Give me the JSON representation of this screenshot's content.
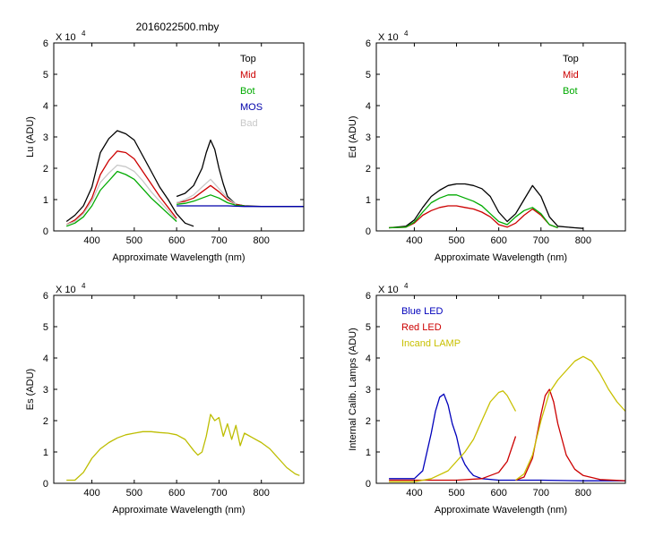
{
  "figure_title": "2016022500.mby",
  "colors": {
    "top": "#000000",
    "mid": "#cc0000",
    "bot": "#00aa00",
    "mos": "#0000aa",
    "bad": "#c8c8c8",
    "es": "#bdbd00",
    "blue_led": "#0000bb",
    "red_led": "#cc0000",
    "incand": "#c8c000"
  },
  "chart_data": [
    {
      "id": "lu",
      "type": "line",
      "title": "",
      "xlabel": "Approximate Wavelength (nm)",
      "ylabel": "Lu (ADU)",
      "exponent_label": "X 10",
      "exponent": "4",
      "xlim": [
        310,
        900
      ],
      "ylim": [
        0,
        6
      ],
      "xticks": [
        400,
        500,
        600,
        700,
        800
      ],
      "yticks": [
        0,
        1,
        2,
        3,
        4,
        5,
        6
      ],
      "legend": [
        {
          "label": "Top",
          "color": "#000000"
        },
        {
          "label": "Mid",
          "color": "#cc0000"
        },
        {
          "label": "Bot",
          "color": "#00aa00"
        },
        {
          "label": "MOS",
          "color": "#0000aa"
        },
        {
          "label": "Bad",
          "color": "#c8c8c8"
        }
      ],
      "legend_position": "top-right",
      "series": [
        {
          "name": "Top",
          "color": "#000000",
          "segments": [
            {
              "x": [
                340,
                360,
                380,
                400,
                420,
                440,
                460,
                480,
                500,
                520,
                540,
                560,
                580,
                600,
                620,
                640
              ],
              "y": [
                0.3,
                0.5,
                0.8,
                1.4,
                2.5,
                2.95,
                3.2,
                3.1,
                2.9,
                2.4,
                1.9,
                1.4,
                1.0,
                0.55,
                0.25,
                0.15
              ]
            },
            {
              "x": [
                600,
                620,
                640,
                660,
                670,
                680,
                690,
                700,
                710,
                720,
                740,
                760,
                800,
                850,
                900
              ],
              "y": [
                1.1,
                1.2,
                1.45,
                2.0,
                2.5,
                2.9,
                2.6,
                2.0,
                1.5,
                1.1,
                0.85,
                0.8,
                0.78,
                0.78,
                0.78
              ]
            }
          ]
        },
        {
          "name": "Mid",
          "color": "#cc0000",
          "segments": [
            {
              "x": [
                340,
                360,
                380,
                400,
                420,
                440,
                460,
                480,
                500,
                520,
                540,
                560,
                580,
                600
              ],
              "y": [
                0.2,
                0.35,
                0.6,
                1.05,
                1.8,
                2.25,
                2.55,
                2.5,
                2.3,
                1.9,
                1.5,
                1.1,
                0.75,
                0.4
              ]
            },
            {
              "x": [
                600,
                620,
                640,
                660,
                680,
                700,
                720,
                740,
                760
              ],
              "y": [
                0.9,
                0.95,
                1.05,
                1.25,
                1.45,
                1.25,
                1.0,
                0.85,
                0.8
              ]
            }
          ]
        },
        {
          "name": "Bot",
          "color": "#00aa00",
          "segments": [
            {
              "x": [
                340,
                360,
                380,
                400,
                420,
                440,
                460,
                480,
                500,
                520,
                540,
                560,
                580,
                600
              ],
              "y": [
                0.15,
                0.25,
                0.45,
                0.8,
                1.3,
                1.6,
                1.9,
                1.8,
                1.65,
                1.35,
                1.05,
                0.8,
                0.55,
                0.3
              ]
            },
            {
              "x": [
                600,
                620,
                640,
                660,
                680,
                700,
                720,
                740,
                760
              ],
              "y": [
                0.85,
                0.88,
                0.95,
                1.05,
                1.15,
                1.05,
                0.9,
                0.82,
                0.8
              ]
            }
          ]
        },
        {
          "name": "MOS",
          "color": "#0000aa",
          "segments": [
            {
              "x": [
                600,
                640,
                680,
                720,
                760,
                800,
                850,
                900
              ],
              "y": [
                0.8,
                0.8,
                0.8,
                0.8,
                0.78,
                0.78,
                0.78,
                0.78
              ]
            }
          ]
        },
        {
          "name": "Bad",
          "color": "#c8c8c8",
          "segments": [
            {
              "x": [
                340,
                360,
                380,
                400,
                420,
                440,
                460,
                480,
                500,
                520,
                540,
                560,
                580,
                600
              ],
              "y": [
                0.2,
                0.3,
                0.55,
                0.95,
                1.55,
                1.85,
                2.1,
                2.05,
                1.9,
                1.6,
                1.25,
                0.95,
                0.65,
                0.35
              ]
            },
            {
              "x": [
                600,
                620,
                640,
                660,
                680,
                700,
                720,
                740
              ],
              "y": [
                0.9,
                1.0,
                1.15,
                1.4,
                1.65,
                1.35,
                1.05,
                0.85
              ]
            }
          ]
        }
      ]
    },
    {
      "id": "ed",
      "type": "line",
      "xlabel": "Approximate Wavelength (nm)",
      "ylabel": "Ed  (ADU)",
      "exponent_label": "X 10",
      "exponent": "4",
      "xlim": [
        310,
        900
      ],
      "ylim": [
        0,
        6
      ],
      "xticks": [
        400,
        500,
        600,
        700,
        800
      ],
      "yticks": [
        0,
        1,
        2,
        3,
        4,
        5,
        6
      ],
      "legend": [
        {
          "label": "Top",
          "color": "#000000"
        },
        {
          "label": "Mid",
          "color": "#cc0000"
        },
        {
          "label": "Bot",
          "color": "#00aa00"
        }
      ],
      "legend_position": "top-right",
      "series": [
        {
          "name": "Top",
          "color": "#000000",
          "segments": [
            {
              "x": [
                340,
                380,
                400,
                420,
                440,
                460,
                480,
                500,
                520,
                540,
                560,
                580,
                600,
                620,
                640,
                660,
                680,
                700,
                720,
                740,
                780,
                800
              ],
              "y": [
                0.1,
                0.15,
                0.35,
                0.75,
                1.1,
                1.3,
                1.45,
                1.5,
                1.5,
                1.45,
                1.35,
                1.1,
                0.6,
                0.3,
                0.55,
                1.0,
                1.45,
                1.1,
                0.45,
                0.15,
                0.1,
                0.08
              ]
            }
          ]
        },
        {
          "name": "Mid",
          "color": "#cc0000",
          "segments": [
            {
              "x": [
                340,
                380,
                400,
                420,
                440,
                460,
                480,
                500,
                520,
                540,
                560,
                580,
                600,
                620,
                640,
                660,
                680,
                700,
                720,
                740
              ],
              "y": [
                0.1,
                0.12,
                0.25,
                0.5,
                0.65,
                0.75,
                0.8,
                0.8,
                0.75,
                0.7,
                0.6,
                0.45,
                0.2,
                0.12,
                0.25,
                0.5,
                0.7,
                0.5,
                0.2,
                0.1
              ]
            }
          ]
        },
        {
          "name": "Bot",
          "color": "#00aa00",
          "segments": [
            {
              "x": [
                340,
                380,
                400,
                420,
                440,
                460,
                480,
                500,
                520,
                540,
                560,
                580,
                600,
                620,
                640,
                660,
                680,
                700,
                720,
                740
              ],
              "y": [
                0.1,
                0.12,
                0.28,
                0.6,
                0.9,
                1.05,
                1.15,
                1.15,
                1.05,
                0.95,
                0.8,
                0.55,
                0.3,
                0.2,
                0.45,
                0.65,
                0.75,
                0.55,
                0.2,
                0.1
              ]
            }
          ]
        }
      ]
    },
    {
      "id": "es",
      "type": "line",
      "xlabel": "Approximate Wavelength (nm)",
      "ylabel": "Es  (ADU)",
      "exponent_label": "X 10",
      "exponent": "4",
      "xlim": [
        310,
        900
      ],
      "ylim": [
        0,
        6
      ],
      "xticks": [
        400,
        500,
        600,
        700,
        800
      ],
      "yticks": [
        0,
        1,
        2,
        3,
        4,
        5,
        6
      ],
      "legend": [],
      "series": [
        {
          "name": "Es",
          "color": "#bdbd00",
          "segments": [
            {
              "x": [
                340,
                360,
                380,
                400,
                420,
                440,
                460,
                480,
                500,
                520,
                540,
                560,
                580,
                600,
                620,
                640,
                650,
                660,
                670,
                680,
                690,
                700,
                710,
                720,
                730,
                740,
                750,
                760,
                780,
                800,
                820,
                840,
                860,
                880,
                890
              ],
              "y": [
                0.1,
                0.1,
                0.35,
                0.8,
                1.1,
                1.3,
                1.45,
                1.55,
                1.6,
                1.65,
                1.65,
                1.62,
                1.6,
                1.55,
                1.4,
                1.05,
                0.9,
                1.0,
                1.5,
                2.2,
                2.0,
                2.1,
                1.5,
                1.9,
                1.4,
                1.85,
                1.2,
                1.6,
                1.45,
                1.3,
                1.1,
                0.8,
                0.5,
                0.3,
                0.25
              ]
            }
          ]
        }
      ]
    },
    {
      "id": "calib",
      "type": "line",
      "xlabel": "Approximate Wavelength (nm)",
      "ylabel": "Internal Calib. Lamps (ADU)",
      "exponent_label": "X 10",
      "exponent": "4",
      "xlim": [
        310,
        900
      ],
      "ylim": [
        0,
        6
      ],
      "xticks": [
        400,
        500,
        600,
        700,
        800
      ],
      "yticks": [
        0,
        1,
        2,
        3,
        4,
        5,
        6
      ],
      "legend": [
        {
          "label": "Blue LED",
          "color": "#0000bb"
        },
        {
          "label": "Red LED",
          "color": "#cc0000"
        },
        {
          "label": "Incand LAMP",
          "color": "#c8c000"
        }
      ],
      "legend_position": "top-left",
      "series": [
        {
          "name": "Blue LED",
          "color": "#0000bb",
          "segments": [
            {
              "x": [
                340,
                400,
                420,
                440,
                450,
                460,
                470,
                480,
                490,
                500,
                510,
                520,
                530,
                540,
                560,
                600,
                700,
                800,
                900
              ],
              "y": [
                0.15,
                0.15,
                0.4,
                1.6,
                2.3,
                2.75,
                2.85,
                2.5,
                1.9,
                1.5,
                0.9,
                0.6,
                0.4,
                0.25,
                0.15,
                0.1,
                0.1,
                0.08,
                0.08
              ]
            }
          ]
        },
        {
          "name": "Red LED",
          "color": "#cc0000",
          "segments": [
            {
              "x": [
                340,
                500,
                560,
                600,
                620,
                640
              ],
              "y": [
                0.1,
                0.1,
                0.15,
                0.35,
                0.7,
                1.5
              ]
            },
            {
              "x": [
                640,
                660,
                680,
                700,
                710,
                720,
                730,
                740,
                760,
                780,
                800,
                840,
                900
              ],
              "y": [
                0.1,
                0.2,
                0.8,
                2.2,
                2.8,
                3.0,
                2.6,
                1.9,
                0.9,
                0.45,
                0.25,
                0.12,
                0.08
              ]
            }
          ]
        },
        {
          "name": "Incand LAMP",
          "color": "#c8c000",
          "segments": [
            {
              "x": [
                340,
                400,
                440,
                480,
                500,
                520,
                540,
                560,
                580,
                600,
                610,
                620,
                640
              ],
              "y": [
                0.05,
                0.05,
                0.15,
                0.4,
                0.7,
                1.0,
                1.4,
                2.0,
                2.6,
                2.9,
                2.95,
                2.8,
                2.3
              ]
            },
            {
              "x": [
                640,
                660,
                680,
                700,
                720,
                740,
                760,
                780,
                800,
                820,
                840,
                860,
                880,
                900
              ],
              "y": [
                0.1,
                0.3,
                0.9,
                2.0,
                2.9,
                3.3,
                3.6,
                3.9,
                4.05,
                3.9,
                3.5,
                3.0,
                2.6,
                2.3
              ]
            }
          ]
        }
      ]
    }
  ]
}
